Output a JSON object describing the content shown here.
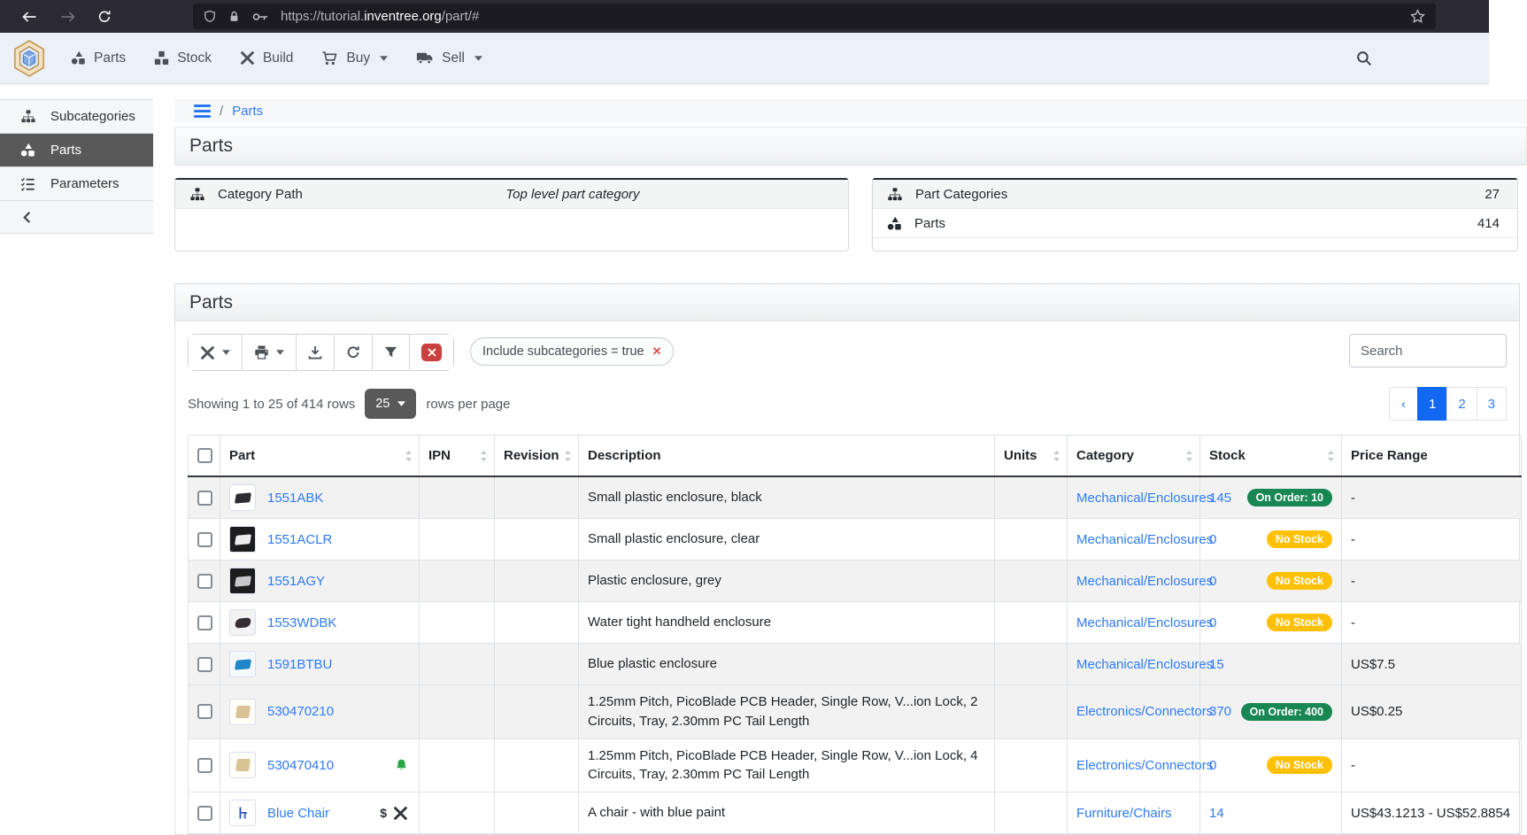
{
  "browser": {
    "url": {
      "prefix": "https://tutorial.",
      "domain": "inventree.org",
      "path": "/part/#"
    }
  },
  "navbar": {
    "items": [
      {
        "label": "Parts",
        "icon": "shapes",
        "dropdown": false
      },
      {
        "label": "Stock",
        "icon": "boxes",
        "dropdown": false
      },
      {
        "label": "Build",
        "icon": "tools",
        "dropdown": false
      },
      {
        "label": "Buy",
        "icon": "cart",
        "dropdown": true
      },
      {
        "label": "Sell",
        "icon": "truck",
        "dropdown": true
      }
    ]
  },
  "sidebar": {
    "items": [
      {
        "label": "Subcategories",
        "icon": "sitemap",
        "active": false
      },
      {
        "label": "Parts",
        "icon": "shapes",
        "active": true
      },
      {
        "label": "Parameters",
        "icon": "tasks",
        "active": false
      }
    ]
  },
  "breadcrumb": {
    "link": "Parts"
  },
  "page": {
    "title": "Parts"
  },
  "panels": {
    "category": {
      "rows": [
        {
          "icon": "sitemap",
          "label": "Category Path",
          "value": "Top level part category",
          "italic": true
        }
      ]
    },
    "stats": {
      "rows": [
        {
          "icon": "sitemap",
          "label": "Part Categories",
          "value": "27"
        },
        {
          "icon": "shapes",
          "label": "Parts",
          "value": "414"
        }
      ]
    }
  },
  "parts_card": {
    "title": "Parts",
    "chip": "Include subcategories = true",
    "search_placeholder": "Search",
    "showing": "Showing 1 to 25 of 414 rows",
    "page_size": "25",
    "per_page": "rows per page",
    "pagination": {
      "prev": "‹",
      "pages": [
        "1",
        "2",
        "3"
      ],
      "active": "1"
    },
    "columns": [
      {
        "label": "Part",
        "sortable": true
      },
      {
        "label": "IPN",
        "sortable": true
      },
      {
        "label": "Revision",
        "sortable": true
      },
      {
        "label": "Description",
        "sortable": false
      },
      {
        "label": "Units",
        "sortable": true
      },
      {
        "label": "Category",
        "sortable": true
      },
      {
        "label": "Stock",
        "sortable": true
      },
      {
        "label": "Price Range",
        "sortable": false
      }
    ],
    "rows": [
      {
        "part": "1551ABK",
        "thumb": "abk",
        "trailing_icons": [],
        "description": "Small plastic enclosure, black",
        "category": "Mechanical/Enclosures",
        "stock": "145",
        "stock_badge": {
          "label": "On Order: 10",
          "type": "success"
        },
        "price": "-"
      },
      {
        "part": "1551ACLR",
        "thumb": "aclr",
        "trailing_icons": [],
        "description": "Small plastic enclosure, clear",
        "category": "Mechanical/Enclosures",
        "stock": "0",
        "stock_badge": {
          "label": "No Stock",
          "type": "warning"
        },
        "price": "-"
      },
      {
        "part": "1551AGY",
        "thumb": "agy",
        "trailing_icons": [],
        "description": "Plastic enclosure, grey",
        "category": "Mechanical/Enclosures",
        "stock": "0",
        "stock_badge": {
          "label": "No Stock",
          "type": "warning"
        },
        "price": "-"
      },
      {
        "part": "1553WDBK",
        "thumb": "wdbk",
        "trailing_icons": [],
        "description": "Water tight handheld enclosure",
        "category": "Mechanical/Enclosures",
        "stock": "0",
        "stock_badge": {
          "label": "No Stock",
          "type": "warning"
        },
        "price": "-"
      },
      {
        "part": "1591BTBU",
        "thumb": "btbu",
        "trailing_icons": [],
        "description": "Blue plastic enclosure",
        "category": "Mechanical/Enclosures",
        "stock": "15",
        "stock_badge": null,
        "price": "US$7.5"
      },
      {
        "part": "530470210",
        "thumb": "conn",
        "trailing_icons": [],
        "description": "1.25mm Pitch, PicoBlade PCB Header, Single Row, V...ion Lock, 2 Circuits, Tray, 2.30mm PC Tail Length",
        "category": "Electronics/Connectors",
        "stock": "370",
        "stock_badge": {
          "label": "On Order: 400",
          "type": "success"
        },
        "price": "US$0.25"
      },
      {
        "part": "530470410",
        "thumb": "conn",
        "trailing_icons": [
          "bell"
        ],
        "description": "1.25mm Pitch, PicoBlade PCB Header, Single Row, V...ion Lock, 4 Circuits, Tray, 2.30mm PC Tail Length",
        "category": "Electronics/Connectors",
        "stock": "0",
        "stock_badge": {
          "label": "No Stock",
          "type": "warning"
        },
        "price": "-"
      },
      {
        "part": "Blue Chair",
        "thumb": "chair",
        "trailing_icons": [
          "dollar",
          "tools"
        ],
        "description": "A chair - with blue paint",
        "category": "Furniture/Chairs",
        "stock": "14",
        "stock_badge": null,
        "price": "US$43.1213 - US$52.8854"
      }
    ]
  },
  "colors": {
    "accent_blue": "#1268f1",
    "link_blue": "#2e7bf6",
    "badge_green": "#198754",
    "badge_yellow": "#ffc107",
    "danger_red": "#c9403e",
    "sidebar_active": "#595959"
  }
}
